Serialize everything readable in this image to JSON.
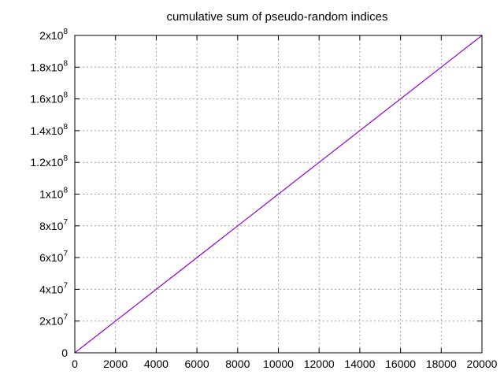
{
  "chart_data": {
    "type": "line",
    "title": "cumulative sum of pseudo-random indices",
    "xlabel": "",
    "ylabel": "",
    "xlim": [
      0,
      20000
    ],
    "ylim": [
      0,
      200000000
    ],
    "grid": true,
    "x_ticks": [
      {
        "value": 0,
        "label": "0"
      },
      {
        "value": 2000,
        "label": "2000"
      },
      {
        "value": 4000,
        "label": "4000"
      },
      {
        "value": 6000,
        "label": "6000"
      },
      {
        "value": 8000,
        "label": "8000"
      },
      {
        "value": 10000,
        "label": "10000"
      },
      {
        "value": 12000,
        "label": "12000"
      },
      {
        "value": 14000,
        "label": "14000"
      },
      {
        "value": 16000,
        "label": "16000"
      },
      {
        "value": 18000,
        "label": "18000"
      },
      {
        "value": 20000,
        "label": "20000"
      }
    ],
    "y_ticks": [
      {
        "value": 0,
        "mantissa": "0",
        "exponent": ""
      },
      {
        "value": 20000000,
        "mantissa": "2x10",
        "exponent": "7"
      },
      {
        "value": 40000000,
        "mantissa": "4x10",
        "exponent": "7"
      },
      {
        "value": 60000000,
        "mantissa": "6x10",
        "exponent": "7"
      },
      {
        "value": 80000000,
        "mantissa": "8x10",
        "exponent": "7"
      },
      {
        "value": 100000000,
        "mantissa": "1x10",
        "exponent": "8"
      },
      {
        "value": 120000000,
        "mantissa": "1.2x10",
        "exponent": "8"
      },
      {
        "value": 140000000,
        "mantissa": "1.4x10",
        "exponent": "8"
      },
      {
        "value": 160000000,
        "mantissa": "1.6x10",
        "exponent": "8"
      },
      {
        "value": 180000000,
        "mantissa": "1.8x10",
        "exponent": "8"
      },
      {
        "value": 200000000,
        "mantissa": "2x10",
        "exponent": "8"
      }
    ],
    "series": [
      {
        "color": "#9400d3",
        "x": [
          0,
          2000,
          4000,
          6000,
          8000,
          10000,
          12000,
          14000,
          16000,
          18000,
          20000
        ],
        "y": [
          0,
          20000000,
          40000000,
          60000000,
          80000000,
          100000000,
          120000000,
          140000000,
          160000000,
          180000000,
          200000000
        ]
      }
    ]
  }
}
